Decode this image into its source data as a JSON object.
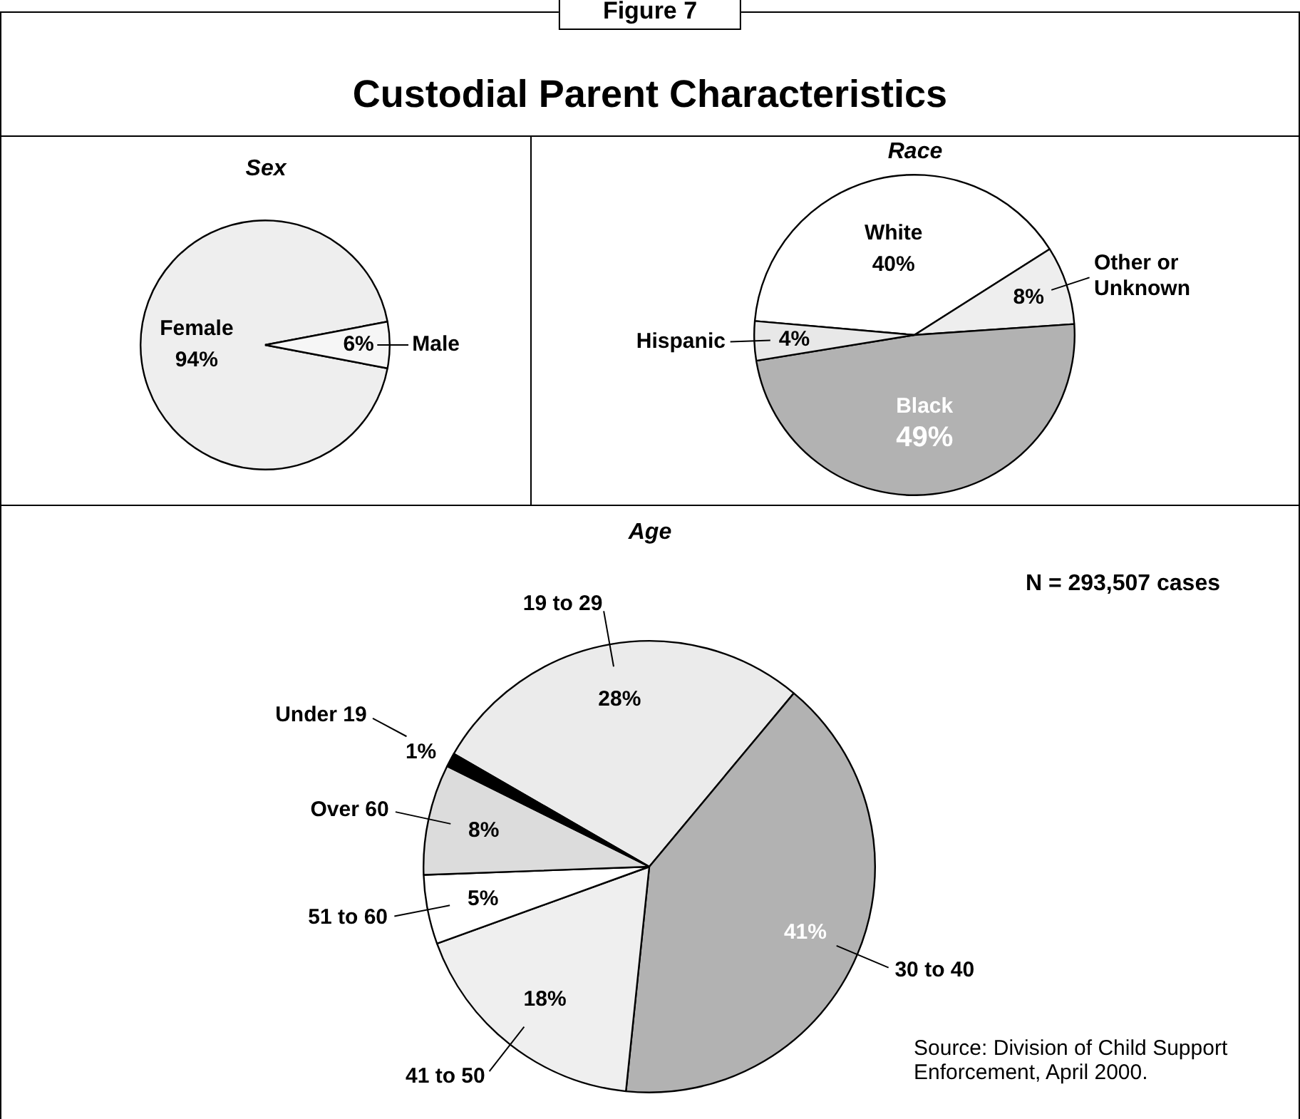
{
  "chart_data": [
    {
      "type": "other",
      "title": "Custodial Parent Characteristics",
      "annotations": [
        "Figure 7"
      ]
    },
    {
      "type": "pie",
      "title": "Sex",
      "categories": [
        "Female",
        "Male"
      ],
      "values": [
        94,
        6
      ],
      "colors": [
        "#eeeeee",
        "#f6f6f6"
      ],
      "value_labels": [
        "94%",
        "6%"
      ],
      "data_labels": true
    },
    {
      "type": "pie",
      "title": "Race",
      "categories": [
        "White",
        "Other or Unknown",
        "Black",
        "Hispanic"
      ],
      "values": [
        40,
        8,
        49,
        4
      ],
      "colors": [
        "#ffffff",
        "#eeeeee",
        "#b2b2b2",
        "#e8e8e8"
      ],
      "value_labels": [
        "40%",
        "8%",
        "49%",
        "4%"
      ],
      "data_labels": true
    },
    {
      "type": "pie",
      "title": "Age",
      "categories": [
        "19 to 29",
        "30 to 40",
        "41 to 50",
        "51 to 60",
        "Over 60",
        "Under 19"
      ],
      "values": [
        28,
        41,
        18,
        5,
        8,
        1
      ],
      "colors": [
        "#ebebeb",
        "#b2b2b2",
        "#efefef",
        "#ffffff",
        "#dcdcdc",
        "#000000"
      ],
      "value_labels": [
        "28%",
        "41%",
        "18%",
        "5%",
        "8%",
        "1%"
      ],
      "data_labels": true,
      "annotations": [
        "N = 293,507 cases",
        "Source:  Division of Child Support Enforcement, April 2000."
      ]
    }
  ]
}
